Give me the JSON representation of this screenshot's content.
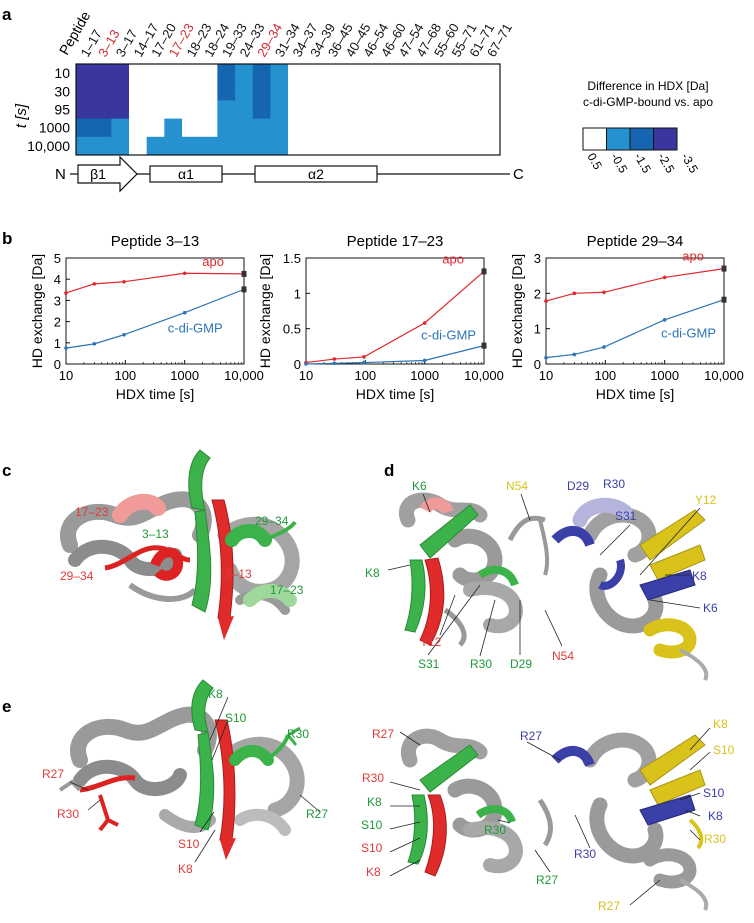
{
  "panels": {
    "a": "a",
    "b": "b",
    "c": "c",
    "d": "d",
    "e": "e"
  },
  "heatmap": {
    "col_header_label": "Peptide",
    "y_axis_label": "t [s]",
    "peptides": [
      "1–17",
      "3–13",
      "3–17",
      "14–17",
      "17–20",
      "17–23",
      "18–23",
      "18–24",
      "19–33",
      "24–33",
      "29–34",
      "31–34",
      "34–37",
      "34–39",
      "36–45",
      "40–45",
      "46–54",
      "46–60",
      "47–54",
      "47–68",
      "55–60",
      "55–71",
      "61–71",
      "67–71"
    ],
    "highlighted_peptides": [
      "3–13",
      "17–23",
      "29–34"
    ],
    "highlight_color": "#d7282f",
    "times": [
      "10",
      "30",
      "95",
      "1000",
      "10,000"
    ],
    "difference_level_colors": [
      "#ffffff",
      "#2591cf",
      "#1565b0",
      "#3a36a0"
    ],
    "difference_levels": [
      [
        3,
        3,
        3,
        0,
        0,
        0,
        0,
        0,
        2,
        1,
        2,
        1,
        0,
        0,
        0,
        0,
        0,
        0,
        0,
        0,
        0,
        0,
        0,
        0
      ],
      [
        3,
        3,
        3,
        0,
        0,
        0,
        0,
        0,
        2,
        1,
        2,
        1,
        0,
        0,
        0,
        0,
        0,
        0,
        0,
        0,
        0,
        0,
        0,
        0
      ],
      [
        3,
        3,
        3,
        0,
        0,
        0,
        0,
        0,
        1,
        1,
        2,
        1,
        0,
        0,
        0,
        0,
        0,
        0,
        0,
        0,
        0,
        0,
        0,
        0
      ],
      [
        2,
        2,
        1,
        0,
        0,
        1,
        0,
        0,
        1,
        1,
        1,
        1,
        0,
        0,
        0,
        0,
        0,
        0,
        0,
        0,
        0,
        0,
        0,
        0
      ],
      [
        1,
        1,
        1,
        0,
        1,
        1,
        1,
        1,
        1,
        1,
        1,
        1,
        0,
        0,
        0,
        0,
        0,
        0,
        0,
        0,
        0,
        0,
        0,
        0
      ]
    ]
  },
  "legend": {
    "title_line1": "Difference in HDX [Da]",
    "title_line2": "c-di-GMP-bound vs. apo",
    "ticks": [
      "0.5",
      "-0.5",
      "-1.5",
      "-2.5",
      "-3.5"
    ]
  },
  "topology": {
    "n_label": "N",
    "c_label": "C",
    "elements": [
      {
        "type": "strand",
        "label": "β1",
        "start_col": 0,
        "end_col": 3.2
      },
      {
        "type": "helix",
        "label": "α1",
        "start_col": 4,
        "end_col": 8.5
      },
      {
        "type": "helix",
        "label": "α2",
        "start_col": 10.8,
        "end_col": 17.8
      }
    ]
  },
  "chart_data": [
    {
      "type": "line",
      "title": "Peptide 3–13",
      "xlabel": "HDX time [s]",
      "ylabel": "HD exchange [Da]",
      "xscale": "log",
      "xlim": [
        10,
        10000
      ],
      "ylim": [
        0,
        5
      ],
      "xticks": [
        "10",
        "100",
        "1000",
        "10,000"
      ],
      "yticks": [
        "0",
        "1",
        "2",
        "3",
        "4",
        "5"
      ],
      "x": [
        10,
        30,
        95,
        1000,
        10000
      ],
      "series": [
        {
          "name": "apo",
          "color": "#e0282e",
          "values": [
            3.35,
            3.78,
            3.88,
            4.28,
            4.25
          ]
        },
        {
          "name": "c-di-GMP",
          "color": "#2a74b8",
          "values": [
            0.75,
            0.95,
            1.38,
            2.42,
            3.52
          ]
        }
      ]
    },
    {
      "type": "line",
      "title": "Peptide 17–23",
      "xlabel": "HDX time [s]",
      "ylabel": "HD exchange [Da]",
      "xscale": "log",
      "xlim": [
        10,
        10000
      ],
      "ylim": [
        0,
        1.5
      ],
      "xticks": [
        "10",
        "100",
        "1000",
        "10,000"
      ],
      "yticks": [
        "0",
        "0.5",
        "1",
        "1.5"
      ],
      "x": [
        10,
        30,
        95,
        1000,
        10000
      ],
      "series": [
        {
          "name": "apo",
          "color": "#e0282e",
          "values": [
            0.02,
            0.07,
            0.1,
            0.58,
            1.31
          ]
        },
        {
          "name": "c-di-GMP",
          "color": "#2a74b8",
          "values": [
            0.0,
            0.01,
            0.02,
            0.05,
            0.26
          ]
        }
      ]
    },
    {
      "type": "line",
      "title": "Peptide 29–34",
      "xlabel": "HDX time [s]",
      "ylabel": "HD exchange [Da]",
      "xscale": "log",
      "xlim": [
        10,
        10000
      ],
      "ylim": [
        0,
        3
      ],
      "xticks": [
        "10",
        "100",
        "1000",
        "10,000"
      ],
      "yticks": [
        "0",
        "1",
        "2",
        "3"
      ],
      "x": [
        10,
        30,
        95,
        1000,
        10000
      ],
      "series": [
        {
          "name": "apo",
          "color": "#e0282e",
          "values": [
            1.78,
            2.0,
            2.03,
            2.45,
            2.7
          ]
        },
        {
          "name": "c-di-GMP",
          "color": "#2a74b8",
          "values": [
            0.18,
            0.27,
            0.48,
            1.25,
            1.82
          ]
        }
      ]
    }
  ],
  "structure_labels": {
    "c": [
      {
        "text": "17–23",
        "color": "#e23a3a"
      },
      {
        "text": "29–34",
        "color": "#e23a3a"
      },
      {
        "text": "3–13",
        "color": "#e23a3a"
      },
      {
        "text": "3–13",
        "color": "#1f9a38"
      },
      {
        "text": "29–34",
        "color": "#1f9a38"
      },
      {
        "text": "17–23",
        "color": "#1f9a38"
      }
    ],
    "d": [
      {
        "text": "K6",
        "color": "#1f9a38"
      },
      {
        "text": "K8",
        "color": "#1f9a38"
      },
      {
        "text": "Y12",
        "color": "#e23a3a"
      },
      {
        "text": "S31",
        "color": "#1f9a38"
      },
      {
        "text": "R30",
        "color": "#1f9a38"
      },
      {
        "text": "D29",
        "color": "#1f9a38"
      },
      {
        "text": "N54",
        "color": "#e23a3a"
      },
      {
        "text": "N54",
        "color": "#d9c21a"
      },
      {
        "text": "D29",
        "color": "#3b3fa8"
      },
      {
        "text": "R30",
        "color": "#3b3fa8"
      },
      {
        "text": "S31",
        "color": "#3b3fa8"
      },
      {
        "text": "Y12",
        "color": "#d9c21a"
      },
      {
        "text": "K8",
        "color": "#3b3fa8"
      },
      {
        "text": "K6",
        "color": "#3b3fa8"
      }
    ],
    "e_left": [
      {
        "text": "K8",
        "color": "#1f9a38"
      },
      {
        "text": "S10",
        "color": "#1f9a38"
      },
      {
        "text": "R30",
        "color": "#1f9a38"
      },
      {
        "text": "R27",
        "color": "#1f9a38"
      },
      {
        "text": "R27",
        "color": "#e23a3a"
      },
      {
        "text": "R30",
        "color": "#e23a3a"
      },
      {
        "text": "S10",
        "color": "#e23a3a"
      },
      {
        "text": "K8",
        "color": "#e23a3a"
      }
    ],
    "e_right": [
      {
        "text": "R27",
        "color": "#e23a3a"
      },
      {
        "text": "R30",
        "color": "#e23a3a"
      },
      {
        "text": "K8",
        "color": "#1f9a38"
      },
      {
        "text": "S10",
        "color": "#1f9a38"
      },
      {
        "text": "S10",
        "color": "#e23a3a"
      },
      {
        "text": "K8",
        "color": "#e23a3a"
      },
      {
        "text": "R30",
        "color": "#1f9a38"
      },
      {
        "text": "R27",
        "color": "#1f9a38"
      },
      {
        "text": "R27",
        "color": "#3b3fa8"
      },
      {
        "text": "R30",
        "color": "#3b3fa8"
      },
      {
        "text": "K8",
        "color": "#d9c21a"
      },
      {
        "text": "S10",
        "color": "#d9c21a"
      },
      {
        "text": "S10",
        "color": "#3b3fa8"
      },
      {
        "text": "K8",
        "color": "#3b3fa8"
      },
      {
        "text": "R30",
        "color": "#d9c21a"
      },
      {
        "text": "R27",
        "color": "#d9c21a"
      }
    ]
  }
}
